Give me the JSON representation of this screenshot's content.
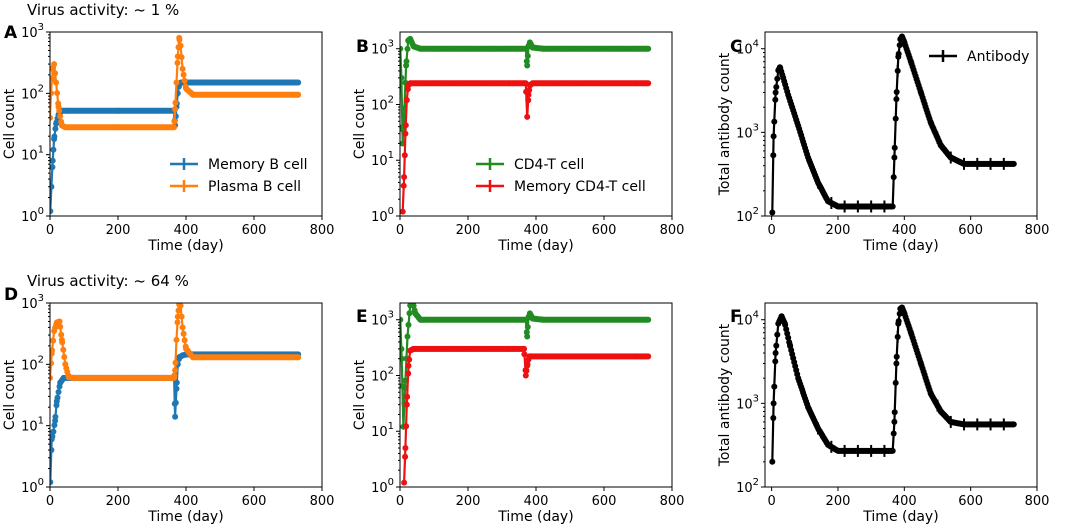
{
  "figure_titles": [
    "Virus activity: ~ 1 %",
    "Virus activity: ~ 64 %"
  ],
  "colors": {
    "memory_b": "#1f77b4",
    "plasma_b": "#ff7f0e",
    "cd4": "#228b22",
    "memory_cd4": "#ee1111",
    "antibody": "#000000",
    "axis": "#000000"
  },
  "chart_data": [
    {
      "panel": "A",
      "type": "line",
      "scale": "log",
      "xlabel": "Time (day)",
      "ylabel": "Cell count",
      "xlim": [
        0,
        800
      ],
      "xticks": [
        0,
        200,
        400,
        600,
        800
      ],
      "ylim_log10": [
        0,
        3
      ],
      "yticks": [
        "10^0",
        "10^1",
        "10^2",
        "10^3"
      ],
      "legend_position": "lower-right",
      "series": [
        {
          "name": "Memory B cell",
          "color_key": "memory_b",
          "points": [
            [
              1,
              1.2
            ],
            [
              4,
              3
            ],
            [
              8,
              8
            ],
            [
              12,
              18
            ],
            [
              18,
              32
            ],
            [
              25,
              45
            ],
            [
              35,
              52
            ],
            [
              50,
              52
            ],
            [
              200,
              52
            ],
            [
              365,
              52
            ],
            [
              368,
              30
            ],
            [
              372,
              60
            ],
            [
              376,
              100
            ],
            [
              380,
              140
            ],
            [
              385,
              150
            ],
            [
              400,
              150
            ],
            [
              730,
              150
            ]
          ]
        },
        {
          "name": "Plasma B cell",
          "color_key": "plasma_b",
          "points": [
            [
              0,
              40
            ],
            [
              3,
              100
            ],
            [
              8,
              250
            ],
            [
              12,
              300
            ],
            [
              18,
              150
            ],
            [
              25,
              60
            ],
            [
              35,
              30
            ],
            [
              45,
              28
            ],
            [
              200,
              28
            ],
            [
              365,
              28
            ],
            [
              368,
              55
            ],
            [
              372,
              150
            ],
            [
              376,
              400
            ],
            [
              380,
              800
            ],
            [
              384,
              600
            ],
            [
              390,
              250
            ],
            [
              400,
              120
            ],
            [
              420,
              95
            ],
            [
              730,
              95
            ]
          ]
        }
      ]
    },
    {
      "panel": "B",
      "type": "line",
      "scale": "log",
      "xlabel": "Time (day)",
      "ylabel": "Cell count",
      "xlim": [
        0,
        800
      ],
      "xticks": [
        0,
        200,
        400,
        600,
        800
      ],
      "ylim_log10": [
        0,
        3.3
      ],
      "yticks": [
        "10^0",
        "10^1",
        "10^2",
        "10^3"
      ],
      "legend_position": "lower-right",
      "series": [
        {
          "name": "CD4-T cell",
          "color_key": "cd4",
          "points": [
            [
              1,
              1000
            ],
            [
              4,
              300
            ],
            [
              8,
              20
            ],
            [
              12,
              60
            ],
            [
              18,
              500
            ],
            [
              24,
              1400
            ],
            [
              30,
              1500
            ],
            [
              40,
              1100
            ],
            [
              60,
              1000
            ],
            [
              370,
              1000
            ],
            [
              374,
              500
            ],
            [
              378,
              1100
            ],
            [
              382,
              1300
            ],
            [
              390,
              1050
            ],
            [
              420,
              1000
            ],
            [
              730,
              1000
            ]
          ]
        },
        {
          "name": "Memory CD4-T cell",
          "color_key": "memory_cd4",
          "points": [
            [
              8,
              1.2
            ],
            [
              12,
              5
            ],
            [
              16,
              30
            ],
            [
              20,
              120
            ],
            [
              24,
              220
            ],
            [
              30,
              240
            ],
            [
              370,
              240
            ],
            [
              374,
              60
            ],
            [
              378,
              150
            ],
            [
              382,
              220
            ],
            [
              390,
              240
            ],
            [
              730,
              240
            ]
          ]
        }
      ]
    },
    {
      "panel": "C",
      "type": "line",
      "scale": "log",
      "xlabel": "Time (day)",
      "ylabel": "Total antibody count",
      "xlim": [
        -20,
        800
      ],
      "xticks": [
        0,
        200,
        400,
        600,
        800
      ],
      "ylim_log10": [
        2,
        4.2
      ],
      "yticks": [
        "10^2",
        "10^3",
        "10^4"
      ],
      "legend_position": "top-right",
      "series": [
        {
          "name": "Antibody",
          "color_key": "antibody",
          "points": [
            [
              2,
              110
            ],
            [
              6,
              900
            ],
            [
              12,
              3000
            ],
            [
              20,
              5500
            ],
            [
              25,
              6000
            ],
            [
              35,
              4500
            ],
            [
              50,
              2800
            ],
            [
              80,
              1200
            ],
            [
              110,
              500
            ],
            [
              140,
              250
            ],
            [
              170,
              150
            ],
            [
              200,
              130
            ],
            [
              365,
              130
            ],
            [
              370,
              500
            ],
            [
              376,
              2500
            ],
            [
              382,
              8000
            ],
            [
              388,
              13000
            ],
            [
              393,
              14000
            ],
            [
              400,
              12000
            ],
            [
              420,
              7000
            ],
            [
              450,
              3000
            ],
            [
              480,
              1300
            ],
            [
              510,
              700
            ],
            [
              540,
              500
            ],
            [
              580,
              420
            ],
            [
              730,
              420
            ]
          ]
        }
      ]
    },
    {
      "panel": "D",
      "type": "line",
      "scale": "log",
      "xlabel": "Time (day)",
      "ylabel": "Cell count",
      "xlim": [
        0,
        800
      ],
      "xticks": [
        0,
        200,
        400,
        600,
        800
      ],
      "ylim_log10": [
        0,
        3
      ],
      "yticks": [
        "10^0",
        "10^1",
        "10^2",
        "10^3"
      ],
      "series": [
        {
          "name": "Memory B cell",
          "color_key": "memory_b",
          "points": [
            [
              1,
              1.2
            ],
            [
              5,
              6
            ],
            [
              10,
              8
            ],
            [
              15,
              12
            ],
            [
              20,
              25
            ],
            [
              30,
              50
            ],
            [
              40,
              60
            ],
            [
              60,
              60
            ],
            [
              365,
              60
            ],
            [
              368,
              14
            ],
            [
              372,
              40
            ],
            [
              376,
              100
            ],
            [
              380,
              130
            ],
            [
              390,
              140
            ],
            [
              400,
              145
            ],
            [
              730,
              145
            ]
          ]
        },
        {
          "name": "Plasma B cell",
          "color_key": "plasma_b",
          "points": [
            [
              0,
              60
            ],
            [
              5,
              150
            ],
            [
              12,
              350
            ],
            [
              20,
              480
            ],
            [
              28,
              500
            ],
            [
              35,
              250
            ],
            [
              45,
              100
            ],
            [
              55,
              62
            ],
            [
              70,
              60
            ],
            [
              365,
              60
            ],
            [
              368,
              80
            ],
            [
              372,
              250
            ],
            [
              376,
              600
            ],
            [
              380,
              950
            ],
            [
              384,
              900
            ],
            [
              390,
              400
            ],
            [
              400,
              180
            ],
            [
              420,
              130
            ],
            [
              730,
              130
            ]
          ]
        }
      ]
    },
    {
      "panel": "E",
      "type": "line",
      "scale": "log",
      "xlabel": "Time (day)",
      "ylabel": "Cell count",
      "xlim": [
        0,
        800
      ],
      "xticks": [
        0,
        200,
        400,
        600,
        800
      ],
      "ylim_log10": [
        0,
        3.3
      ],
      "yticks": [
        "10^0",
        "10^1",
        "10^2",
        "10^3"
      ],
      "series": [
        {
          "name": "CD4-T cell",
          "color_key": "cd4",
          "points": [
            [
              1,
              1000
            ],
            [
              5,
              200
            ],
            [
              10,
              12
            ],
            [
              15,
              60
            ],
            [
              22,
              500
            ],
            [
              30,
              1800
            ],
            [
              38,
              2000
            ],
            [
              45,
              1300
            ],
            [
              60,
              1000
            ],
            [
              370,
              1000
            ],
            [
              374,
              500
            ],
            [
              378,
              1100
            ],
            [
              382,
              1300
            ],
            [
              390,
              1050
            ],
            [
              420,
              1000
            ],
            [
              730,
              1000
            ]
          ]
        },
        {
          "name": "Memory CD4-T cell",
          "color_key": "memory_cd4",
          "points": [
            [
              12,
              1.2
            ],
            [
              16,
              5
            ],
            [
              20,
              30
            ],
            [
              25,
              150
            ],
            [
              30,
              280
            ],
            [
              40,
              300
            ],
            [
              365,
              300
            ],
            [
              370,
              100
            ],
            [
              374,
              150
            ],
            [
              380,
              220
            ],
            [
              390,
              220
            ],
            [
              730,
              220
            ]
          ]
        }
      ]
    },
    {
      "panel": "F",
      "type": "line",
      "scale": "log",
      "xlabel": "Time (day)",
      "ylabel": "Total antibody count",
      "xlim": [
        -20,
        800
      ],
      "xticks": [
        0,
        200,
        400,
        600,
        800
      ],
      "ylim_log10": [
        2,
        4.2
      ],
      "yticks": [
        "10^2",
        "10^3",
        "10^4"
      ],
      "series": [
        {
          "name": "Antibody",
          "color_key": "antibody",
          "points": [
            [
              2,
              200
            ],
            [
              6,
              1000
            ],
            [
              12,
              4000
            ],
            [
              20,
              9000
            ],
            [
              30,
              11000
            ],
            [
              40,
              9000
            ],
            [
              55,
              5000
            ],
            [
              80,
              2000
            ],
            [
              110,
              900
            ],
            [
              140,
              500
            ],
            [
              170,
              320
            ],
            [
              200,
              270
            ],
            [
              365,
              270
            ],
            [
              370,
              600
            ],
            [
              376,
              3000
            ],
            [
              382,
              9000
            ],
            [
              388,
              13500
            ],
            [
              393,
              14000
            ],
            [
              400,
              12000
            ],
            [
              420,
              7000
            ],
            [
              450,
              3000
            ],
            [
              480,
              1300
            ],
            [
              510,
              800
            ],
            [
              540,
              600
            ],
            [
              580,
              560
            ],
            [
              730,
              560
            ]
          ]
        }
      ]
    }
  ]
}
